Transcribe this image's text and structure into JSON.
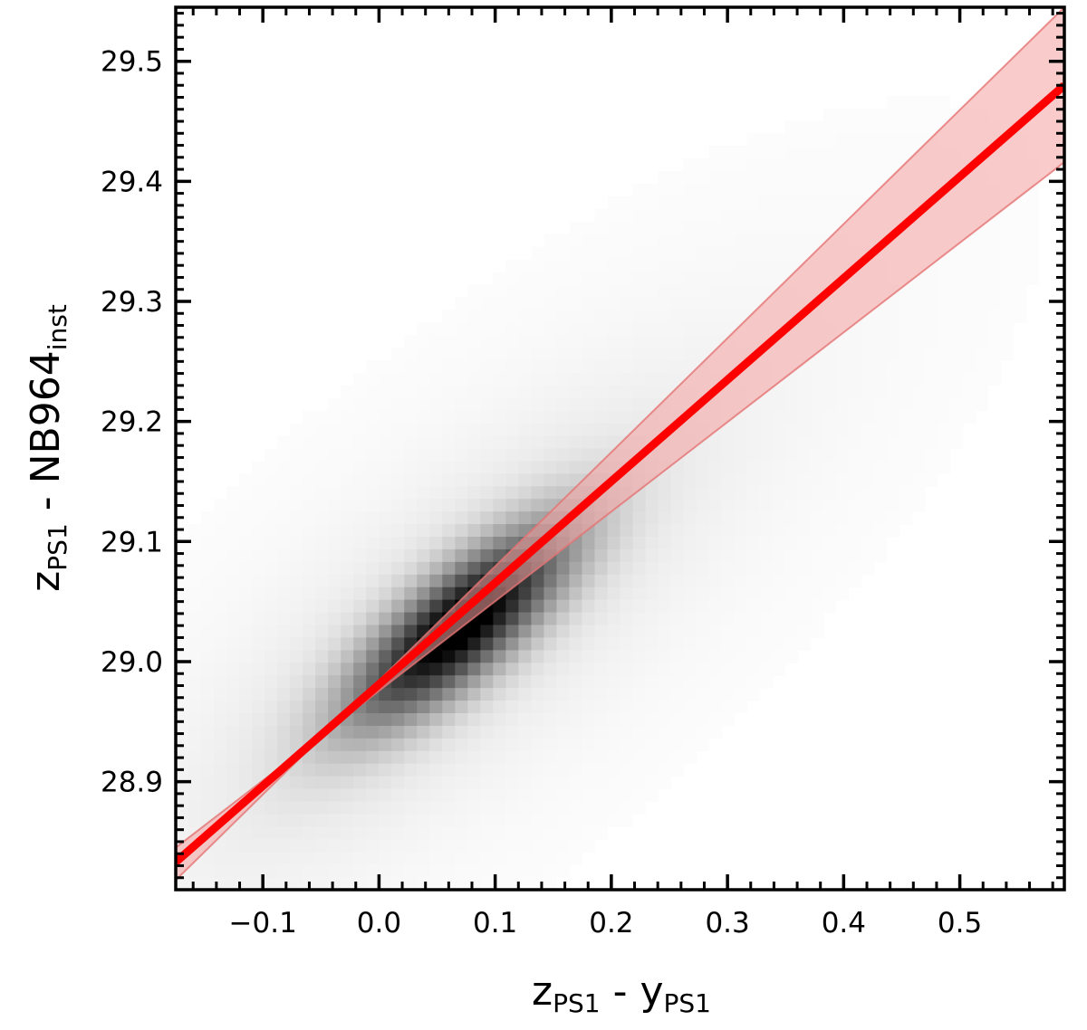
{
  "chart_data": {
    "type": "heatmap",
    "title": "",
    "xlabel": {
      "main": "z",
      "sub": "PS1",
      "sep": " - ",
      "main2": "y",
      "sub2": "PS1"
    },
    "ylabel": {
      "main": "z",
      "sub": "PS1",
      "sep": " - NB964",
      "sub2": "inst"
    },
    "xlim": [
      -0.175,
      0.59
    ],
    "ylim": [
      28.81,
      29.545
    ],
    "x_ticks": [
      -0.1,
      0.0,
      0.1,
      0.2,
      0.3,
      0.4,
      0.5
    ],
    "x_tick_labels": [
      "−0.1",
      "0.0",
      "0.1",
      "0.2",
      "0.3",
      "0.4",
      "0.5"
    ],
    "y_ticks": [
      28.9,
      29.0,
      29.1,
      29.2,
      29.3,
      29.4,
      29.5
    ],
    "y_tick_labels": [
      "28.9",
      "29.0",
      "29.1",
      "29.2",
      "29.3",
      "29.4",
      "29.5"
    ],
    "minor_tick_step_x": 0.02,
    "minor_tick_step_y": 0.01,
    "grid": false,
    "legend": "none",
    "density": {
      "colormap": "Greys",
      "peak": [
        0.07,
        29.03
      ],
      "sigma_major": 0.06,
      "sigma_minor": 0.028,
      "orientation_slope": 1.0
    },
    "series": [
      {
        "type": "line",
        "x": [
          -0.175,
          0.59
        ],
        "y": [
          28.833,
          29.48
        ],
        "color": "#ff0000"
      },
      {
        "type": "band_upper",
        "x": [
          -0.175,
          0.59
        ],
        "y": [
          28.818,
          29.545
        ],
        "color": "#f4a0a0"
      },
      {
        "type": "band_lower",
        "x": [
          -0.175,
          0.59
        ],
        "y": [
          28.845,
          29.416
        ],
        "color": "#f4a0a0"
      }
    ],
    "band_pivot": [
      0.0,
      28.98
    ]
  }
}
